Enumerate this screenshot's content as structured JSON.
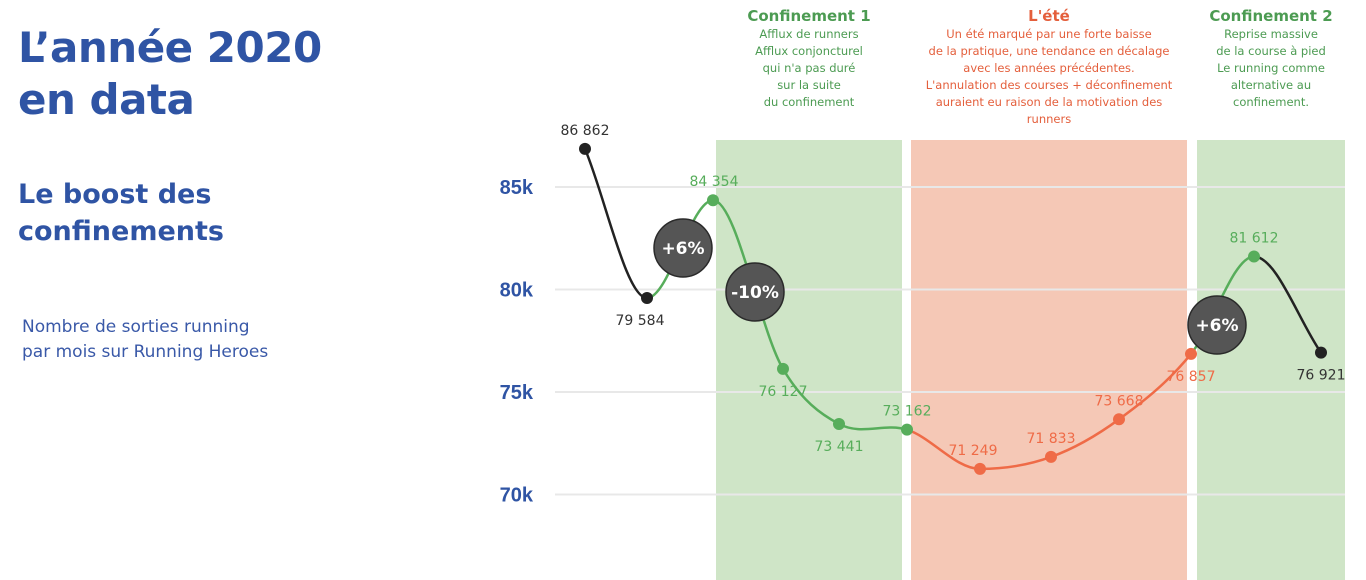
{
  "header": {
    "title_line1": "L’année 2020",
    "title_line2": "en data",
    "subtitle_line1": "Le boost des",
    "subtitle_line2": "confinements",
    "desc_line1": "Nombre de sorties running",
    "desc_line2": "par mois sur Running  Heroes"
  },
  "colors": {
    "blue": "#2f54a4",
    "green": "#57ad5b",
    "orange": "#ef6b47",
    "dark": "#222222",
    "green_band": "#cfe5c7",
    "orange_band": "#f5c8b6",
    "badge": "#555555"
  },
  "periods": [
    {
      "title": "Confinement 1",
      "lines": [
        "Afflux de runners",
        "Afflux conjoncturel",
        "qui n'a pas duré",
        "sur la suite",
        "du confinement"
      ]
    },
    {
      "title": "L'été",
      "lines": [
        "Un été marqué par une forte baisse",
        "de la pratique, une tendance en décalage",
        "avec les années précédentes.",
        "L'annulation des courses + déconfinement",
        "auraient eu raison de la motivation des",
        "runners"
      ]
    },
    {
      "title": "Confinement 2",
      "lines": [
        "Reprise massive",
        "de la course à pied",
        "Le running comme",
        "alternative au",
        "confinement."
      ]
    }
  ],
  "badges": [
    "+6%",
    "-10%",
    "+6%"
  ],
  "chart_data": {
    "type": "line",
    "y_ticks": [
      "85k",
      "80k",
      "75k",
      "70k"
    ],
    "y_tick_values": [
      85000,
      80000,
      75000,
      70000
    ],
    "ylim": [
      67500,
      90000
    ],
    "grid": true,
    "points": [
      {
        "value": 86862,
        "label": "86 862",
        "color": "dark"
      },
      {
        "value": 79584,
        "label": "79 584",
        "color": "dark"
      },
      {
        "value": 84354,
        "label": "84 354",
        "color": "green"
      },
      {
        "value": 76127,
        "label": "76 127",
        "color": "green"
      },
      {
        "value": 73441,
        "label": "73 441",
        "color": "green"
      },
      {
        "value": 73162,
        "label": "73 162",
        "color": "green"
      },
      {
        "value": 71249,
        "label": "71 249",
        "color": "orange"
      },
      {
        "value": 71833,
        "label": "71 833",
        "color": "orange"
      },
      {
        "value": 73668,
        "label": "73 668",
        "color": "orange"
      },
      {
        "value": 76857,
        "label": "76 857",
        "color": "orange"
      },
      {
        "value": 81612,
        "label": "81 612",
        "color": "green"
      },
      {
        "value": 76921,
        "label": "76 921",
        "color": "dark"
      }
    ],
    "segment_colors": [
      "dark",
      "green",
      "green",
      "green",
      "green",
      "orange",
      "orange",
      "orange",
      "orange",
      "green",
      "dark"
    ]
  }
}
